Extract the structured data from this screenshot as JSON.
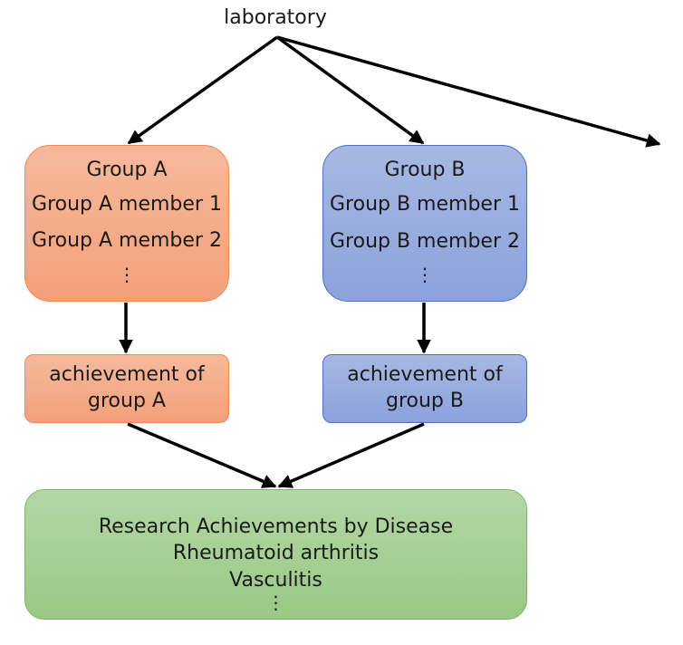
{
  "root_label": "laboratory",
  "group_a": {
    "title": "Group A",
    "members": [
      "Group A member 1",
      "Group A member 2"
    ],
    "more": "⋮"
  },
  "group_b": {
    "title": "Group B",
    "members": [
      "Group B member 1",
      "Group B member 2"
    ],
    "more": "⋮"
  },
  "achievement_a": {
    "lines": [
      "achievement of",
      "group A"
    ]
  },
  "achievement_b": {
    "lines": [
      "achievement of",
      "group B"
    ]
  },
  "disease_box": {
    "title": "Research Achievements by Disease",
    "items": [
      "Rheumatoid arthritis",
      "Vasculitis"
    ],
    "more": "⋮"
  },
  "colors": {
    "orange_fill": "#f4a882",
    "orange_border": "#ef8a53",
    "blue_fill": "#98acdf",
    "blue_border": "#4f6fc0",
    "green_fill": "#a6d094",
    "green_border": "#7fb36b",
    "arrow": "#000000"
  }
}
